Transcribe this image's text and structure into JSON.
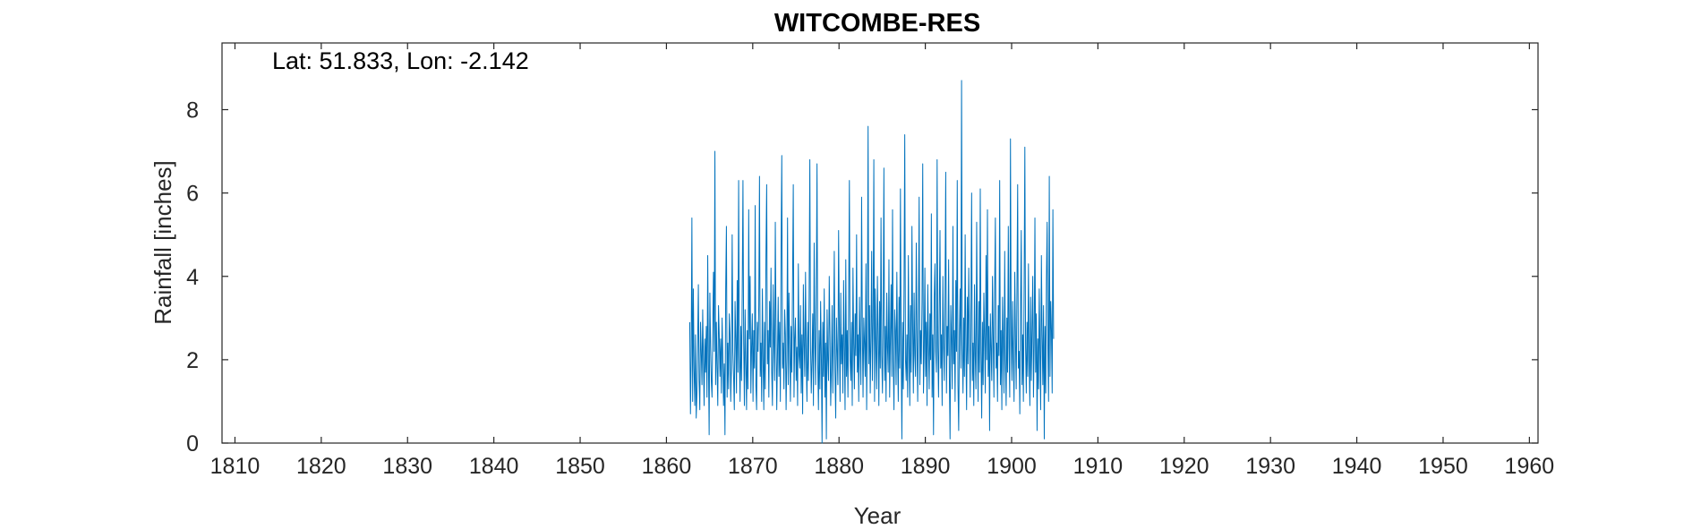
{
  "chart_data": {
    "type": "line",
    "title": "WITCOMBE-RES",
    "xlabel": "Year",
    "ylabel": "Rainfall [inches]",
    "annotation": "Lat: 51.833, Lon: -2.142",
    "xlim": [
      1808.5,
      1961
    ],
    "ylim": [
      0,
      9.6
    ],
    "xticks": [
      1810,
      1820,
      1830,
      1840,
      1850,
      1860,
      1870,
      1880,
      1890,
      1900,
      1910,
      1920,
      1930,
      1940,
      1950,
      1960
    ],
    "yticks": [
      0,
      2,
      4,
      6,
      8
    ],
    "grid": false,
    "line_color": "#0072BD",
    "series": [
      {
        "x_start": 1862.7,
        "x_step_years": 0.0833333,
        "frequency": "monthly",
        "values": [
          2.9,
          0.7,
          2.1,
          5.4,
          1.0,
          3.7,
          1.8,
          0.9,
          2.6,
          0.6,
          1.2,
          2.4,
          3.8,
          1.5,
          0.8,
          2.9,
          2.2,
          1.4,
          3.2,
          2.0,
          0.9,
          2.5,
          1.7,
          2.8,
          1.1,
          4.5,
          2.0,
          0.2,
          3.6,
          2.3,
          1.5,
          1.1,
          2.7,
          4.1,
          2.2,
          7.0,
          1.4,
          2.9,
          1.8,
          0.9,
          3.3,
          2.6,
          1.6,
          2.5,
          1.2,
          3.0,
          2.1,
          0.9,
          1.9,
          0.2,
          3.7,
          5.2,
          1.1,
          2.4,
          1.3,
          3.1,
          2.6,
          1.0,
          1.8,
          5.0,
          2.2,
          1.6,
          0.8,
          3.4,
          2.5,
          1.2,
          3.9,
          1.7,
          6.3,
          2.1,
          1.0,
          2.8,
          1.5,
          3.6,
          6.3,
          2.4,
          0.9,
          3.2,
          1.9,
          0.8,
          2.7,
          1.3,
          5.6,
          2.5,
          4.0,
          1.2,
          2.3,
          3.1,
          1.0,
          2.7,
          1.8,
          5.7,
          1.4,
          0.8,
          2.9,
          2.2,
          3.3,
          6.4,
          1.6,
          2.4,
          1.0,
          3.7,
          2.0,
          0.8,
          2.9,
          1.3,
          4.5,
          6.2,
          1.9,
          2.7,
          1.1,
          3.4,
          2.3,
          4.2,
          1.7,
          0.9,
          3.8,
          2.4,
          1.5,
          5.3,
          2.7,
          0.8,
          2.1,
          3.5,
          1.6,
          2.9,
          1.0,
          4.6,
          6.9,
          1.8,
          2.4,
          1.3,
          3.2,
          2.6,
          0.8,
          2.0,
          5.4,
          1.4,
          3.6,
          2.2,
          1.0,
          2.8,
          1.7,
          3.9,
          6.2,
          1.1,
          2.5,
          3.0,
          1.5,
          2.3,
          0.9,
          4.3,
          2.1,
          1.8,
          3.3,
          1.2,
          2.6,
          0.7,
          3.8,
          2.4,
          1.6,
          4.1,
          2.0,
          1.0,
          2.9,
          1.5,
          3.5,
          6.8,
          2.3,
          1.2,
          2.0,
          3.1,
          0.9,
          4.8,
          2.5,
          1.4,
          3.6,
          6.7,
          1.9,
          0.8,
          2.7,
          1.3,
          3.4,
          2.1,
          0.0,
          2.9,
          1.6,
          3.7,
          1.1,
          2.4,
          0.1,
          3.2,
          2.0,
          1.5,
          4.0,
          2.6,
          0.9,
          1.8,
          3.3,
          1.2,
          2.5,
          4.6,
          1.7,
          0.6,
          3.0,
          2.2,
          1.4,
          5.1,
          2.8,
          1.0,
          3.6,
          1.9,
          2.6,
          1.2,
          3.9,
          2.3,
          0.8,
          4.4,
          1.6,
          2.7,
          1.1,
          3.4,
          6.3,
          2.0,
          1.5,
          2.9,
          0.9,
          4.2,
          2.4,
          1.3,
          3.1,
          2.1,
          5.0,
          1.7,
          2.6,
          1.0,
          3.5,
          2.2,
          1.4,
          5.9,
          2.8,
          1.1,
          3.0,
          2.4,
          1.6,
          4.3,
          0.8,
          2.7,
          7.6,
          1.9,
          3.3,
          1.2,
          2.5,
          4.6,
          1.5,
          2.9,
          6.8,
          1.0,
          3.7,
          2.2,
          1.3,
          4.0,
          2.6,
          0.9,
          3.4,
          1.8,
          5.4,
          2.1,
          1.2,
          3.1,
          6.6,
          1.5,
          2.8,
          1.0,
          3.6,
          2.3,
          1.7,
          4.4,
          1.1,
          2.5,
          3.8,
          1.6,
          5.6,
          2.0,
          0.8,
          3.2,
          2.7,
          1.4,
          4.1,
          2.2,
          1.0,
          3.5,
          1.8,
          6.1,
          2.4,
          0.1,
          2.9,
          1.3,
          3.7,
          7.4,
          2.0,
          1.5,
          2.6,
          1.1,
          4.5,
          2.3,
          0.9,
          3.3,
          1.7,
          5.2,
          2.8,
          1.2,
          3.6,
          2.1,
          1.6,
          4.8,
          2.5,
          1.0,
          3.0,
          5.9,
          1.4,
          2.7,
          1.9,
          3.4,
          6.7,
          1.2,
          2.2,
          4.2,
          1.6,
          2.9,
          0.9,
          3.8,
          2.4,
          1.3,
          3.1,
          2.0,
          5.5,
          1.1,
          2.6,
          0.2,
          3.5,
          4.3,
          2.2,
          1.7,
          6.8,
          2.3,
          1.1,
          3.2,
          5.1,
          1.8,
          2.6,
          0.9,
          4.0,
          2.4,
          1.5,
          3.6,
          6.5,
          1.2,
          2.8,
          2.1,
          4.4,
          1.6,
          0.1,
          3.3,
          2.5,
          1.3,
          5.2,
          1.9,
          2.7,
          1.0,
          3.9,
          2.2,
          6.3,
          1.4,
          0.3,
          2.6,
          3.7,
          1.8,
          8.7,
          2.4,
          1.2,
          3.0,
          1.6,
          5.0,
          2.3,
          0.8,
          3.5,
          1.9,
          4.2,
          2.7,
          1.1,
          3.2,
          6.0,
          1.5,
          2.4,
          0.9,
          3.8,
          2.1,
          1.3,
          5.3,
          2.6,
          1.0,
          3.4,
          1.7,
          6.1,
          2.2,
          0.6,
          2.9,
          1.4,
          3.6,
          2.5,
          1.2,
          4.5,
          2.0,
          5.6,
          1.6,
          2.8,
          0.3,
          3.1,
          2.3,
          1.5,
          4.0,
          2.6,
          1.1,
          3.7,
          5.4,
          1.8,
          2.4,
          1.0,
          3.3,
          2.1,
          6.3,
          1.4,
          2.7,
          0.8,
          3.5,
          2.4,
          1.2,
          4.6,
          2.0,
          0.9,
          3.0,
          1.7,
          5.2,
          2.3,
          1.1,
          7.3,
          2.6,
          1.5,
          3.4,
          2.0,
          1.0,
          4.1,
          2.5,
          1.3,
          3.6,
          6.2,
          1.8,
          2.2,
          0.7,
          3.2,
          5.1,
          1.4,
          2.6,
          1.0,
          3.8,
          7.1,
          2.3,
          1.2,
          2.9,
          1.6,
          4.3,
          2.0,
          0.9,
          3.5,
          1.5,
          2.7,
          4.0,
          1.1,
          2.4,
          5.4,
          1.7,
          3.1,
          0.3,
          2.5,
          1.3,
          3.7,
          2.2,
          0.8,
          4.5,
          2.6,
          1.4,
          3.3,
          0.1,
          2.8,
          1.2,
          3.9,
          5.3,
          2.3,
          1.0,
          6.4,
          1.6,
          3.4,
          2.7,
          1.2,
          5.6,
          2.5
        ]
      }
    ]
  }
}
